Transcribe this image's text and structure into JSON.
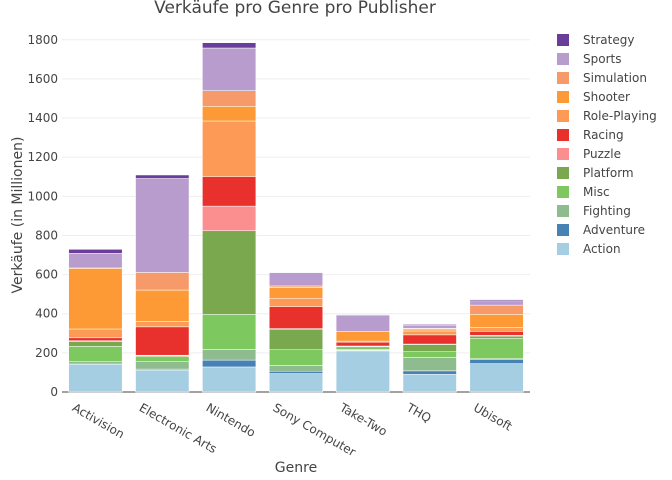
{
  "chart_data": {
    "type": "bar",
    "stacked": true,
    "title": "Verkäufe pro Genre pro Publisher",
    "xlabel": "Genre",
    "ylabel": "Verkäufe (in Millionen)",
    "ylim": [
      0,
      1850
    ],
    "yticks": [
      0,
      200,
      400,
      600,
      800,
      1000,
      1200,
      1400,
      1600,
      1800
    ],
    "grid": true,
    "legend_position": "right",
    "categories": [
      "Activision",
      "Electronic Arts",
      "Nintendo",
      "Sony Computer",
      "Take-Two",
      "THQ",
      "Ubisoft"
    ],
    "series": [
      {
        "name": "Action",
        "color": "#a6cee3",
        "values": [
          142,
          112,
          128,
          94,
          210,
          90,
          145
        ]
      },
      {
        "name": "Adventure",
        "color": "#4682b4",
        "values": [
          5,
          5,
          35,
          12,
          3,
          18,
          22
        ]
      },
      {
        "name": "Fighting",
        "color": "#8fbc8f",
        "values": [
          8,
          40,
          55,
          30,
          5,
          68,
          3
        ]
      },
      {
        "name": "Misc",
        "color": "#7ec860",
        "values": [
          78,
          23,
          178,
          80,
          13,
          30,
          103
        ]
      },
      {
        "name": "Platform",
        "color": "#7aa84e",
        "values": [
          24,
          5,
          428,
          105,
          3,
          37,
          13
        ]
      },
      {
        "name": "Puzzle",
        "color": "#fb8f8f",
        "values": [
          5,
          3,
          126,
          3,
          1,
          2,
          4
        ]
      },
      {
        "name": "Racing",
        "color": "#e8302d",
        "values": [
          15,
          145,
          150,
          112,
          20,
          47,
          20
        ]
      },
      {
        "name": "Role-Playing",
        "color": "#fd9a55",
        "values": [
          45,
          28,
          285,
          43,
          5,
          20,
          20
        ]
      },
      {
        "name": "Shooter",
        "color": "#fe9a35",
        "values": [
          310,
          160,
          75,
          55,
          50,
          10,
          67
        ]
      },
      {
        "name": "Simulation",
        "color": "#f59a68",
        "values": [
          2,
          90,
          80,
          8,
          0,
          3,
          47
        ]
      },
      {
        "name": "Sports",
        "color": "#b99cce",
        "values": [
          75,
          480,
          218,
          68,
          80,
          17,
          22
        ]
      },
      {
        "name": "Strategy",
        "color": "#6a3d9a",
        "values": [
          20,
          18,
          27,
          2,
          4,
          4,
          6
        ]
      }
    ]
  }
}
